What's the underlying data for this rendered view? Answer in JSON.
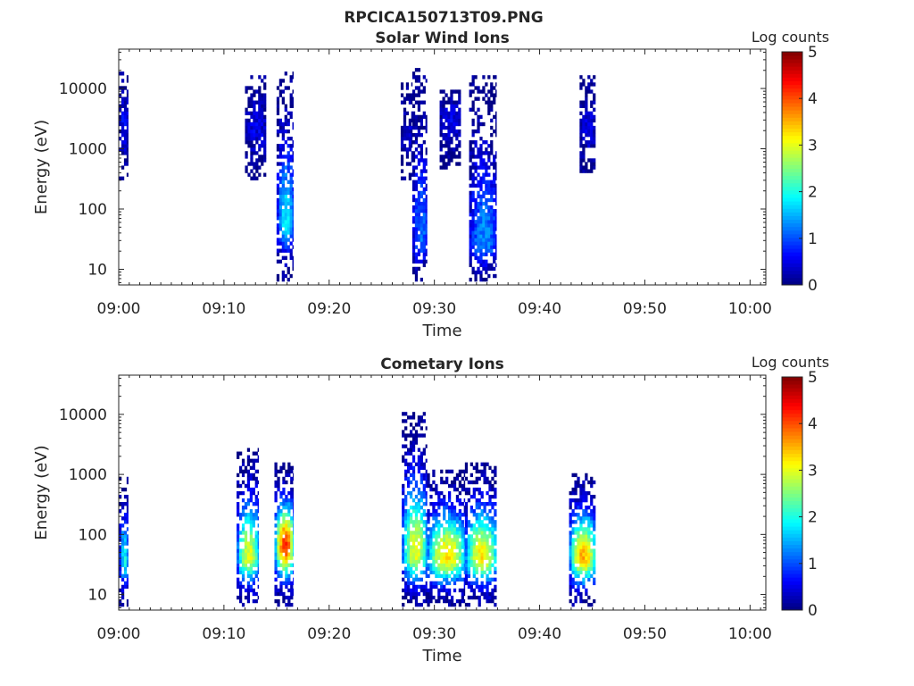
{
  "figure_title": "RPCICA150713T09.PNG",
  "colorbar_ticks": [
    "0",
    "1",
    "2",
    "3",
    "4",
    "5"
  ],
  "chart_data": [
    {
      "type": "heatmap",
      "title": "Solar Wind Ions",
      "xlabel": "Time",
      "ylabel": "Energy (eV)",
      "colorbar_label": "Log counts",
      "x_ticks": [
        "09:00",
        "09:10",
        "09:20",
        "09:30",
        "09:40",
        "09:50",
        "10:00"
      ],
      "y_ticks": [
        "10",
        "100",
        "1000",
        "10000"
      ],
      "xlim_minutes": [
        0,
        61.5
      ],
      "ylim_eV": [
        5.5,
        45000
      ],
      "y_scale": "log",
      "clim": [
        0,
        5
      ],
      "colormap": "jet",
      "bursts": [
        {
          "t_start": 0.0,
          "t_end": 0.9,
          "e_min": 300,
          "e_max": 17000,
          "peak_log_counts": 0.6,
          "peak_energy": 2500
        },
        {
          "t_start": 12.0,
          "t_end": 14.0,
          "e_min": 300,
          "e_max": 15000,
          "peak_log_counts": 0.5,
          "peak_energy": 2000
        },
        {
          "t_start": 15.0,
          "t_end": 16.6,
          "e_min": 6,
          "e_max": 18000,
          "peak_log_counts": 1.8,
          "peak_energy": 60
        },
        {
          "t_start": 26.8,
          "t_end": 27.9,
          "e_min": 300,
          "e_max": 12000,
          "peak_log_counts": 0.4,
          "peak_energy": 1500
        },
        {
          "t_start": 27.9,
          "t_end": 29.3,
          "e_min": 6,
          "e_max": 21000,
          "peak_log_counts": 1.2,
          "peak_energy": 30
        },
        {
          "t_start": 30.5,
          "t_end": 32.5,
          "e_min": 400,
          "e_max": 9000,
          "peak_log_counts": 0.5,
          "peak_energy": 3000
        },
        {
          "t_start": 33.3,
          "t_end": 35.9,
          "e_min": 6,
          "e_max": 16000,
          "peak_log_counts": 1.3,
          "peak_energy": 25
        },
        {
          "t_start": 43.8,
          "t_end": 45.3,
          "e_min": 350,
          "e_max": 16000,
          "peak_log_counts": 0.5,
          "peak_energy": 2000
        }
      ]
    },
    {
      "type": "heatmap",
      "title": "Cometary Ions",
      "xlabel": "Time",
      "ylabel": "Energy (eV)",
      "colorbar_label": "Log counts",
      "x_ticks": [
        "09:00",
        "09:10",
        "09:20",
        "09:30",
        "09:40",
        "09:50",
        "10:00"
      ],
      "y_ticks": [
        "10",
        "100",
        "1000",
        "10000"
      ],
      "xlim_minutes": [
        0,
        61.5
      ],
      "ylim_eV": [
        5.5,
        45000
      ],
      "y_scale": "log",
      "clim": [
        0,
        5
      ],
      "colormap": "jet",
      "bursts": [
        {
          "t_start": 0.0,
          "t_end": 0.9,
          "e_min": 6,
          "e_max": 900,
          "peak_log_counts": 1.9,
          "peak_energy": 35
        },
        {
          "t_start": 11.2,
          "t_end": 13.3,
          "e_min": 6,
          "e_max": 2500,
          "peak_log_counts": 3.0,
          "peak_energy": 40
        },
        {
          "t_start": 14.8,
          "t_end": 16.6,
          "e_min": 6,
          "e_max": 1400,
          "peak_log_counts": 4.1,
          "peak_energy": 60
        },
        {
          "t_start": 26.9,
          "t_end": 29.3,
          "e_min": 6,
          "e_max": 10500,
          "peak_log_counts": 3.0,
          "peak_energy": 45
        },
        {
          "t_start": 29.3,
          "t_end": 32.9,
          "e_min": 6,
          "e_max": 1200,
          "peak_log_counts": 3.3,
          "peak_energy": 40
        },
        {
          "t_start": 32.9,
          "t_end": 35.9,
          "e_min": 6,
          "e_max": 1500,
          "peak_log_counts": 3.2,
          "peak_energy": 40
        },
        {
          "t_start": 42.8,
          "t_end": 45.3,
          "e_min": 6,
          "e_max": 1000,
          "peak_log_counts": 3.5,
          "peak_energy": 40
        }
      ]
    }
  ]
}
